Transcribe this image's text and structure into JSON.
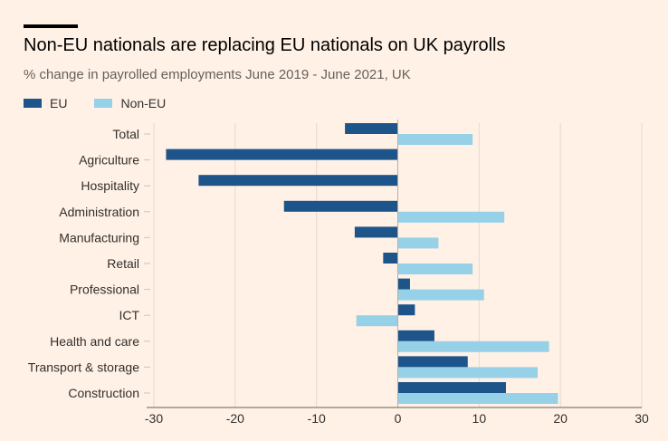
{
  "header": {
    "title": "Non-EU nationals are replacing EU nationals on UK payrolls",
    "subtitle": "% change in payrolled employments June 2019 - June 2021, UK"
  },
  "colors": {
    "eu": "#1d5489",
    "non_eu": "#96d1e8",
    "grid": "#e6d9ce",
    "background": "#fff1e5"
  },
  "chart_data": {
    "type": "bar",
    "orientation": "horizontal",
    "title": "Non-EU nationals are replacing EU nationals on UK payrolls",
    "subtitle": "% change in payrolled employments June 2019 - June 2021, UK",
    "categories": [
      "Total",
      "Agriculture",
      "Hospitality",
      "Administration",
      "Manufacturing",
      "Retail",
      "Professional",
      "ICT",
      "Health and care",
      "Transport & storage",
      "Construction"
    ],
    "series": [
      {
        "name": "EU",
        "values": [
          -6.5,
          -28.5,
          -24.5,
          -14.0,
          -5.3,
          -1.8,
          1.5,
          2.1,
          4.5,
          8.6,
          13.3
        ]
      },
      {
        "name": "Non-EU",
        "values": [
          9.2,
          0.0,
          0.0,
          13.1,
          5.0,
          9.2,
          10.6,
          -5.1,
          18.6,
          17.2,
          19.7
        ]
      }
    ],
    "xlim": [
      -30,
      30
    ],
    "xticks": [
      -30,
      -20,
      -10,
      0,
      10,
      20,
      30
    ],
    "grid": true,
    "legend": "top-left"
  }
}
